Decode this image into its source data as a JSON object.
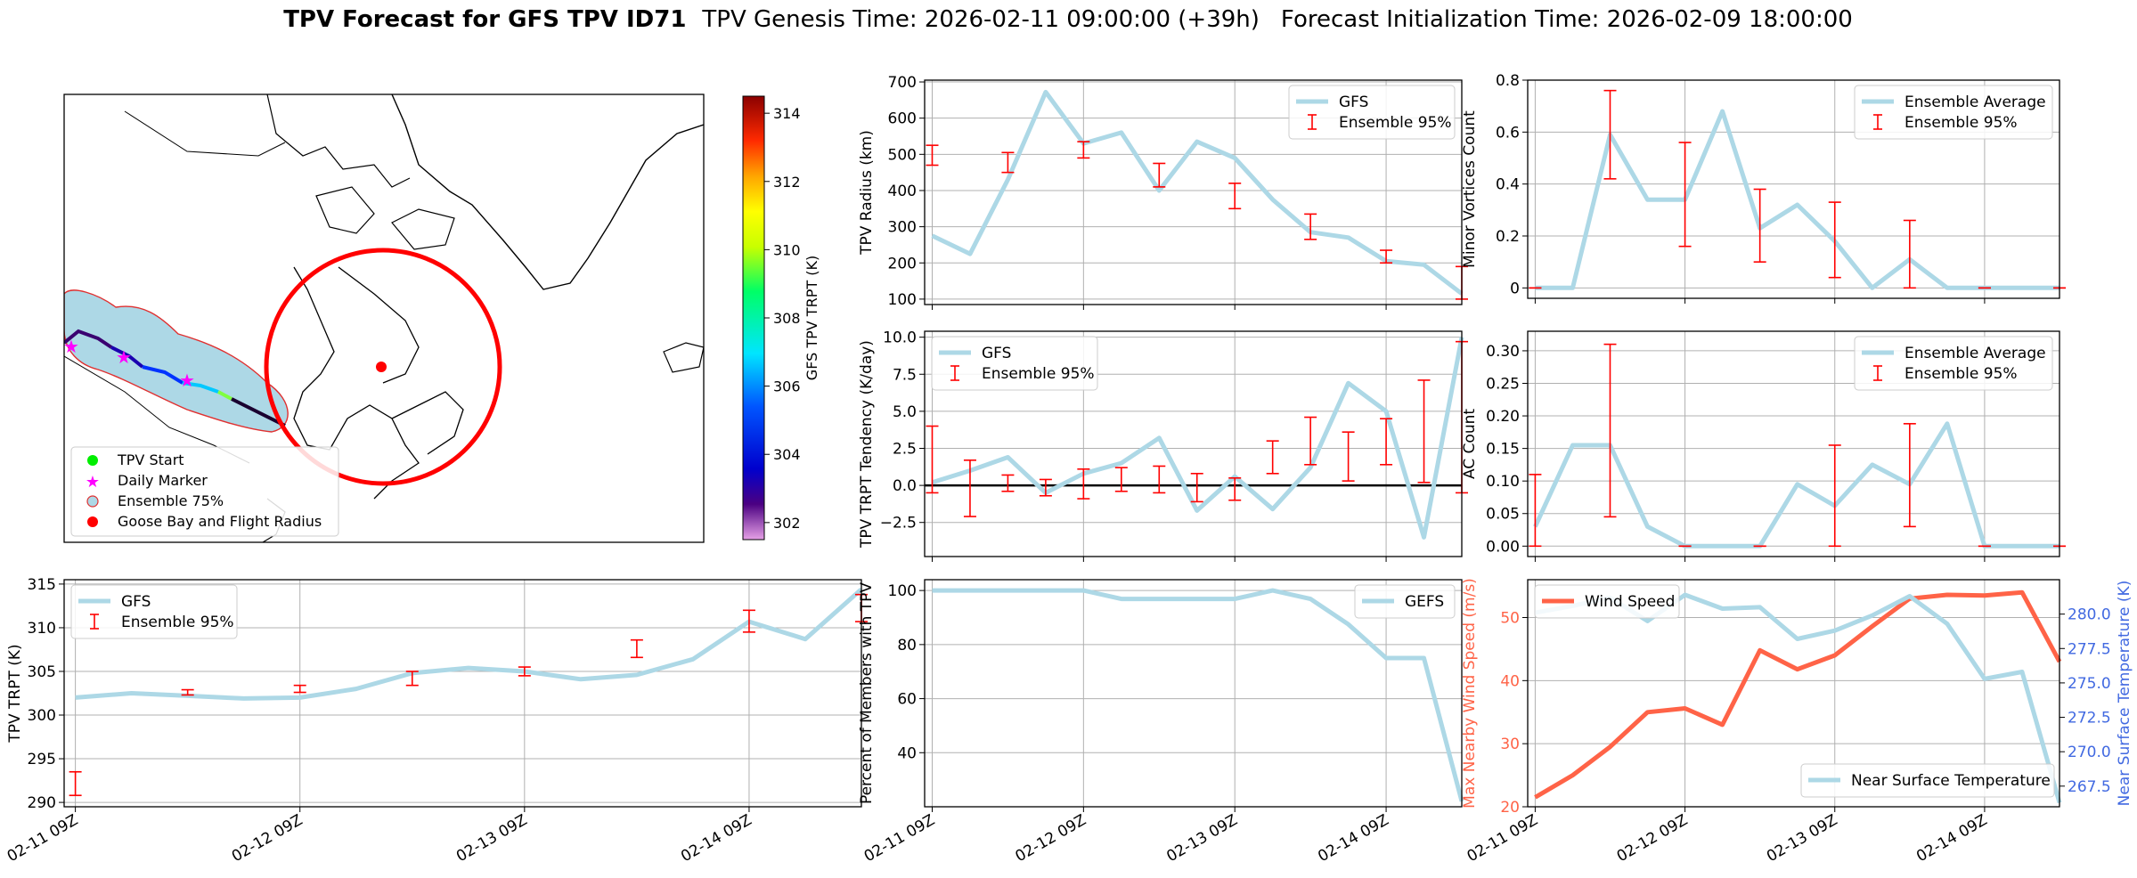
{
  "page": {
    "title_bold": "TPV Forecast for GFS TPV ID71",
    "title_genesis": "TPV Genesis Time: 2026-02-11 09:00:00 (+39h)",
    "title_init": "Forecast Initialization Time: 2026-02-09 18:00:00"
  },
  "map": {
    "colorbar_label": "GFS TPV TRPT (K)",
    "colorbar_ticks": [
      302,
      304,
      306,
      308,
      310,
      312,
      314
    ],
    "colorbar_range": [
      301.5,
      314.5
    ],
    "legend": [
      "TPV Start",
      "Daily Marker",
      "Ensemble 75%",
      "Goose Bay and Flight Radius"
    ],
    "colors": {
      "track_start": "#00ee00",
      "daily_marker": "#ff00ff",
      "ensemble": "#add8e6",
      "goose_bay": "#ff0000"
    }
  },
  "chart_data": [
    {
      "id": "radius",
      "type": "line",
      "ylabel": "TPV Radius (km)",
      "ylim": [
        85,
        705
      ],
      "yticks": [
        100,
        200,
        300,
        400,
        500,
        600,
        700
      ],
      "x": [
        0,
        0.25,
        0.5,
        0.75,
        1,
        1.25,
        1.5,
        1.75,
        2,
        2.25,
        2.5,
        2.75,
        3,
        3.25,
        3.5
      ],
      "series": [
        {
          "name": "GFS",
          "values": [
            275,
            225,
            430,
            672,
            530,
            560,
            400,
            535,
            490,
            375,
            285,
            270,
            205,
            195,
            115
          ]
        }
      ],
      "errorbars": {
        "name": "Ensemble 95%",
        "x": [
          0,
          0.5,
          1,
          1.5,
          2,
          2.5,
          3,
          3.5
        ],
        "low": [
          470,
          450,
          490,
          410,
          350,
          265,
          200,
          100
        ],
        "high": [
          525,
          505,
          535,
          475,
          420,
          335,
          235,
          190
        ]
      },
      "legend": [
        "GFS",
        "Ensemble 95%"
      ],
      "legend_pos": "top-right"
    },
    {
      "id": "minor",
      "type": "line",
      "ylabel": "Minor Vortices Count",
      "ylim": [
        -0.04,
        0.8
      ],
      "yticks": [
        0.0,
        0.2,
        0.4,
        0.6,
        0.8
      ],
      "x": [
        0,
        0.25,
        0.5,
        0.75,
        1,
        1.25,
        1.5,
        1.75,
        2,
        2.25,
        2.5,
        2.75,
        3,
        3.25,
        3.5
      ],
      "series": [
        {
          "name": "Ensemble Average",
          "values": [
            0,
            0,
            0.59,
            0.34,
            0.34,
            0.68,
            0.23,
            0.32,
            0.18,
            0,
            0.11,
            0,
            0,
            0,
            0
          ]
        }
      ],
      "errorbars": {
        "name": "Ensemble 95%",
        "x": [
          0,
          0.5,
          1,
          1.5,
          2,
          2.5,
          3,
          3.5
        ],
        "low": [
          0,
          0.42,
          0.16,
          0.1,
          0.04,
          0,
          0,
          0
        ],
        "high": [
          0,
          0.76,
          0.56,
          0.38,
          0.33,
          0.26,
          0,
          0
        ]
      },
      "legend": [
        "Ensemble Average",
        "Ensemble 95%"
      ],
      "legend_pos": "top-right"
    },
    {
      "id": "tendency",
      "type": "line",
      "ylabel": "TPV TRPT Tendency (K/day)",
      "ylim": [
        -4.8,
        10.4
      ],
      "yticks": [
        -2.5,
        0.0,
        2.5,
        5.0,
        7.5,
        10.0
      ],
      "yticklabels": [
        "−2.5",
        "0.0",
        "2.5",
        "5.0",
        "7.5",
        "10.0"
      ],
      "zero_line": true,
      "x": [
        0,
        0.25,
        0.5,
        0.75,
        1,
        1.25,
        1.5,
        1.75,
        2,
        2.25,
        2.5,
        2.75,
        3,
        3.25,
        3.5
      ],
      "series": [
        {
          "name": "GFS",
          "values": [
            0.2,
            1,
            1.9,
            -0.5,
            0.8,
            1.5,
            3.2,
            -1.7,
            0.6,
            -1.6,
            1.2,
            6.9,
            5,
            -3.5,
            10
          ]
        }
      ],
      "errorbars": {
        "name": "Ensemble 95%",
        "x": [
          0,
          0.25,
          0.5,
          0.75,
          1,
          1.25,
          1.5,
          1.75,
          2,
          2.25,
          2.5,
          2.75,
          3,
          3.25,
          3.5
        ],
        "low": [
          -0.5,
          -2.1,
          -0.4,
          -0.7,
          -0.9,
          -0.4,
          -0.5,
          -1.1,
          -1,
          0.8,
          1.4,
          0.3,
          1.4,
          0.2,
          -0.5
        ],
        "high": [
          4,
          1.7,
          0.7,
          0.4,
          1.1,
          1.2,
          1.3,
          0.8,
          0.5,
          3,
          4.6,
          3.6,
          4.5,
          7.1,
          9.7
        ]
      },
      "legend": [
        "GFS",
        "Ensemble 95%"
      ],
      "legend_pos": "top-left"
    },
    {
      "id": "ac",
      "type": "line",
      "ylabel": "AC Count",
      "ylim": [
        -0.016,
        0.33
      ],
      "yticks": [
        0.0,
        0.05,
        0.1,
        0.15,
        0.2,
        0.25,
        0.3
      ],
      "yticklabels": [
        "0.00",
        "0.05",
        "0.10",
        "0.15",
        "0.20",
        "0.25",
        "0.30"
      ],
      "x": [
        0,
        0.25,
        0.5,
        0.75,
        1,
        1.25,
        1.5,
        1.75,
        2,
        2.25,
        2.5,
        2.75,
        3,
        3.25,
        3.5
      ],
      "series": [
        {
          "name": "Ensemble Average",
          "values": [
            0.03,
            0.155,
            0.155,
            0.03,
            0,
            0,
            0,
            0.095,
            0.062,
            0.125,
            0.095,
            0.188,
            0,
            0,
            0
          ]
        }
      ],
      "errorbars": {
        "name": "Ensemble 95%",
        "x": [
          0,
          0.5,
          1,
          1.5,
          2,
          2.5,
          3,
          3.5
        ],
        "low": [
          0,
          0.045,
          0,
          0,
          0,
          0.03,
          0,
          0
        ],
        "high": [
          0.11,
          0.31,
          0,
          0,
          0.155,
          0.188,
          0,
          0
        ]
      },
      "legend": [
        "Ensemble Average",
        "Ensemble 95%"
      ],
      "legend_pos": "top-right"
    },
    {
      "id": "trpt",
      "type": "line",
      "ylabel": "TPV TRPT (K)",
      "ylim": [
        289.5,
        315.5
      ],
      "yticks": [
        290,
        295,
        300,
        305,
        310,
        315
      ],
      "xticklabels": [
        "02-11 09Z",
        "02-12 09Z",
        "02-13 09Z",
        "02-14 09Z"
      ],
      "x": [
        0,
        0.25,
        0.5,
        0.75,
        1,
        1.25,
        1.5,
        1.75,
        2,
        2.25,
        2.5,
        2.75,
        3,
        3.25,
        3.5
      ],
      "series": [
        {
          "name": "GFS",
          "values": [
            302,
            302.5,
            302.2,
            301.9,
            302,
            303,
            304.8,
            305.4,
            305,
            304.1,
            304.6,
            306.4,
            310.7,
            308.7,
            314.4
          ]
        }
      ],
      "errorbars": {
        "name": "Ensemble 95%",
        "x": [
          0,
          0.5,
          1,
          1.5,
          2,
          2.5,
          3,
          3.5
        ],
        "low": [
          290.8,
          302.3,
          302.6,
          303.4,
          304.5,
          306.6,
          309.5,
          310.7
        ],
        "high": [
          293.5,
          302.9,
          303.4,
          305,
          305.5,
          308.6,
          312,
          313.8
        ]
      },
      "legend": [
        "GFS",
        "Ensemble 95%"
      ],
      "legend_pos": "top-left"
    },
    {
      "id": "percent",
      "type": "line",
      "ylabel": "Percent of Members with TPV",
      "ylim": [
        20,
        104
      ],
      "yticks": [
        40,
        60,
        80,
        100
      ],
      "xticklabels": [
        "02-11 09Z",
        "02-12 09Z",
        "02-13 09Z",
        "02-14 09Z"
      ],
      "x": [
        0,
        0.25,
        0.5,
        0.75,
        1,
        1.25,
        1.5,
        1.75,
        2,
        2.25,
        2.5,
        2.75,
        3,
        3.25,
        3.5
      ],
      "series": [
        {
          "name": "GEFS",
          "values": [
            100,
            100,
            100,
            100,
            100,
            96.9,
            96.9,
            96.9,
            96.9,
            100,
            96.9,
            87.5,
            75,
            75,
            22
          ]
        }
      ],
      "legend": [
        "GEFS"
      ],
      "legend_pos": "top-right"
    },
    {
      "id": "wind",
      "type": "line",
      "ylabel": "Max Nearby Wind Speed (m/s)",
      "ylim": [
        20,
        56
      ],
      "yticks": [
        20,
        30,
        40,
        50
      ],
      "y2label": "Near Surface Temperature (K)",
      "y2lim": [
        266,
        282.5
      ],
      "y2ticks": [
        267.5,
        270,
        272.5,
        275,
        277.5,
        280
      ],
      "y2ticklabels": [
        "267.5",
        "270.0",
        "272.5",
        "275.0",
        "277.5",
        "280.0"
      ],
      "xticklabels": [
        "02-11 09Z",
        "02-12 09Z",
        "02-13 09Z",
        "02-14 09Z"
      ],
      "x": [
        0,
        0.25,
        0.5,
        0.75,
        1,
        1.25,
        1.5,
        1.75,
        2,
        2.25,
        2.5,
        2.75,
        3,
        3.25,
        3.5
      ],
      "series": [
        {
          "name": "Wind Speed",
          "axis": "left",
          "values": [
            21.5,
            25,
            29.5,
            35,
            35.6,
            33,
            44.8,
            41.8,
            44,
            48.6,
            53,
            53.6,
            53.5,
            54,
            43
          ]
        },
        {
          "name": "Near Surface Temperature",
          "axis": "right",
          "values": [
            280.1,
            280.6,
            281.2,
            279.5,
            281.4,
            280.4,
            280.5,
            278.2,
            278.8,
            279.9,
            281.3,
            279.3,
            275.3,
            275.8,
            266.3
          ]
        }
      ],
      "legend": [
        "Wind Speed",
        "Near Surface Temperature"
      ],
      "colors": {
        "wind": "#ff6347",
        "temp": "#add8e6",
        "left_axis": "#ff6347",
        "right_axis": "#4169e1"
      }
    }
  ]
}
